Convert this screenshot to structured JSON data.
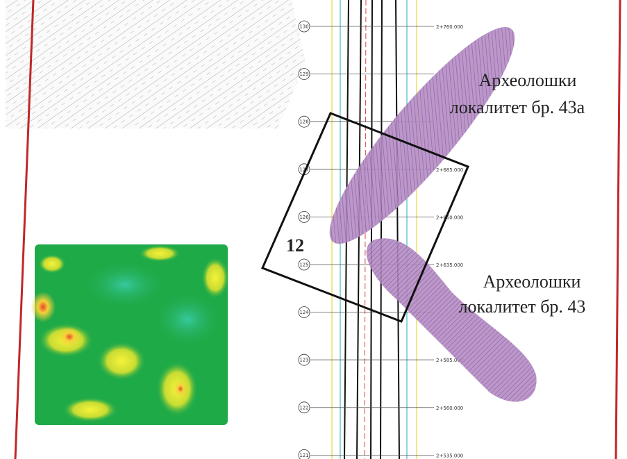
{
  "site_a": [
    "Археолошки",
    "локалитет бр. 43а"
  ],
  "site_b": [
    "Археолошки",
    "локалитет бр. 43"
  ],
  "square_label": "12",
  "stations": [
    {
      "circle": "130",
      "chainage": "2+760.000"
    },
    {
      "circle": "129"
    },
    {
      "circle": "128"
    },
    {
      "circle": "127",
      "chainage": "2+685.000"
    },
    {
      "circle": "126",
      "chainage": "2+660.000"
    },
    {
      "circle": "125",
      "chainage": "2+635.000"
    },
    {
      "circle": "124"
    },
    {
      "circle": "123",
      "chainage": "2+585.000"
    },
    {
      "circle": "122",
      "chainage": "2+560.000"
    },
    {
      "circle": "121",
      "chainage": "2+535.000"
    }
  ]
}
